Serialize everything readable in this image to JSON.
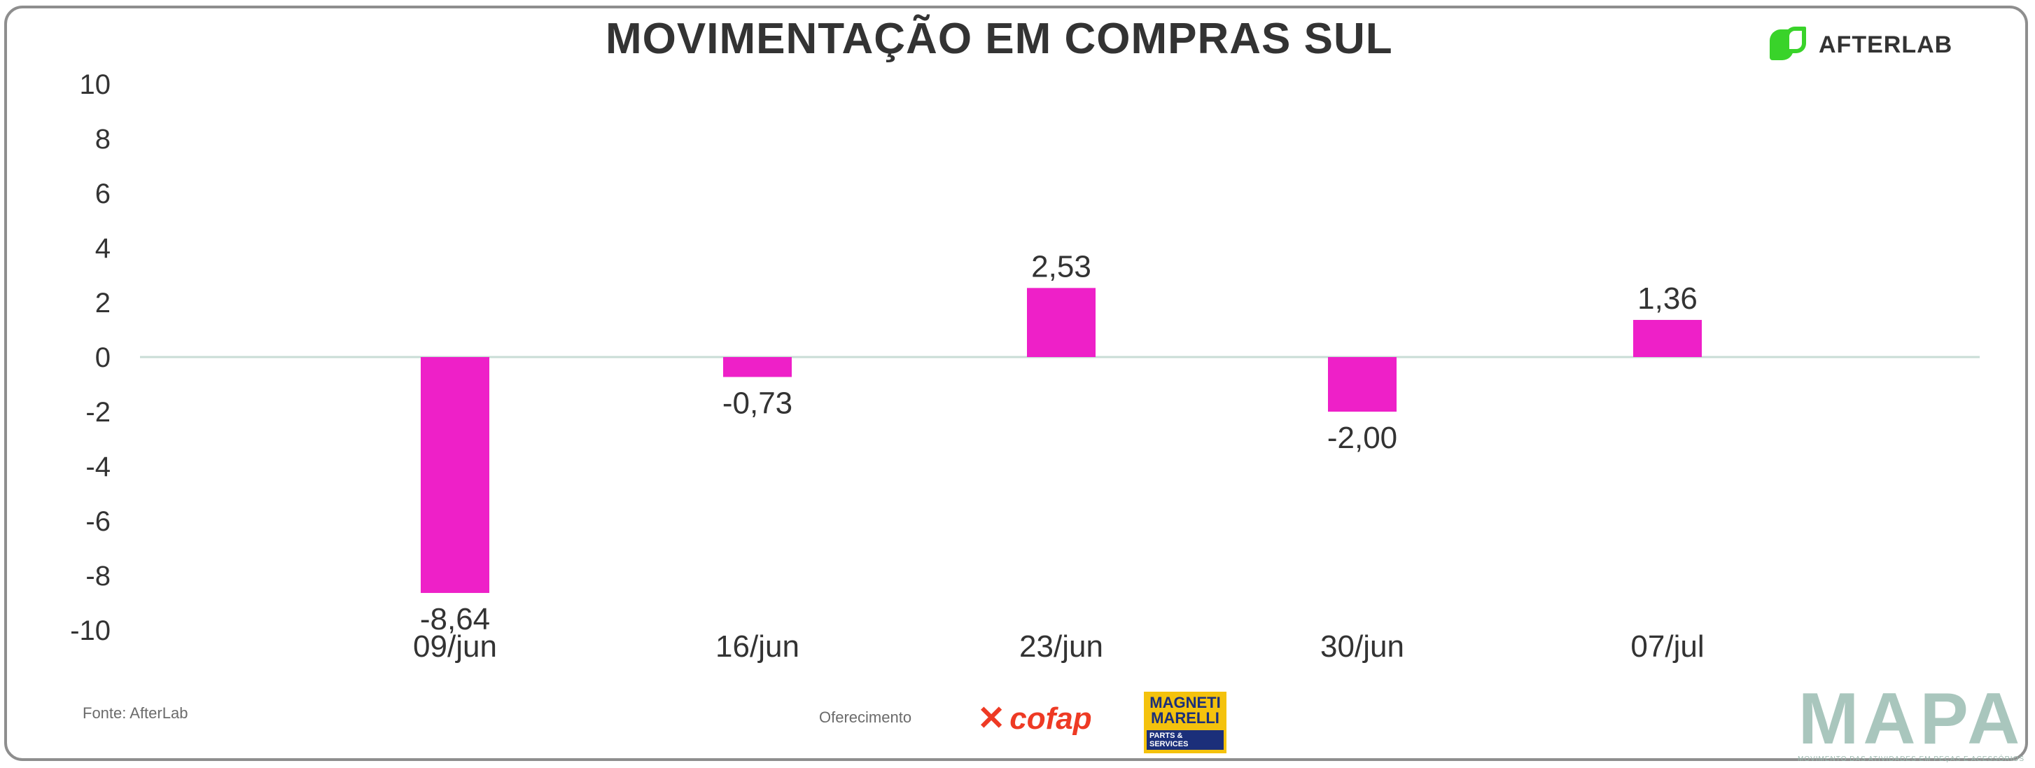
{
  "title": "MOVIMENTAÇÃO EM COMPRAS SUL",
  "brand": {
    "afterlab": "AFTERLAB",
    "cofap": "cofap",
    "magneti_line1": "MAGNETI",
    "magneti_line2": "MARELLI",
    "magneti_line3": "PARTS & SERVICES",
    "mapa": "MAPA",
    "mapa_tagline": "MOVIMENTO DAS ATIVIDADES EM PEÇAS E ACESSÓRIOS"
  },
  "footer": {
    "source": "Fonte: AfterLab",
    "sponsor": "Oferecimento"
  },
  "colors": {
    "bar": "#ee20c8",
    "zero_line": "#c9dcd6",
    "text": "#333333",
    "frame": "#8e8e8e"
  },
  "chart_data": {
    "type": "bar",
    "categories": [
      "09/jun",
      "16/jun",
      "23/jun",
      "30/jun",
      "07/jul"
    ],
    "values": [
      -8.64,
      -0.73,
      2.53,
      -2.0,
      1.36
    ],
    "labels": [
      "-8,64",
      "-0,73",
      "2,53",
      "-2,00",
      "1,36"
    ],
    "ylim": [
      -10,
      10
    ],
    "yticks": [
      -10,
      -8,
      -6,
      -4,
      -2,
      0,
      2,
      4,
      6,
      8,
      10
    ],
    "grid": false,
    "title": "MOVIMENTAÇÃO EM COMPRAS SUL",
    "xlabel": "",
    "ylabel": ""
  }
}
